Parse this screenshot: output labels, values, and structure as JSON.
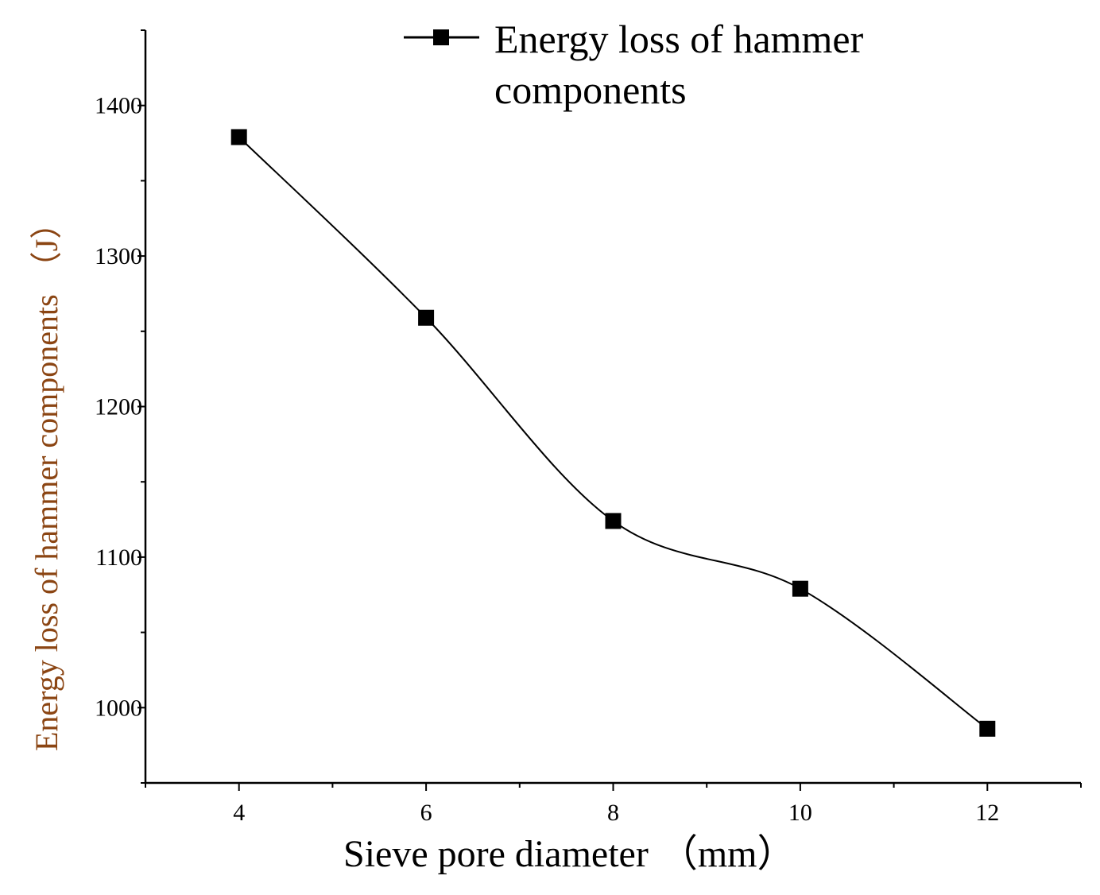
{
  "chart_data": {
    "type": "line",
    "title": "",
    "xlabel": "Sieve pore diameter",
    "xlabel_unit": "（mm）",
    "ylabel": "Energy loss of hammer components",
    "ylabel_unit": "（J）",
    "xlim": [
      3,
      13
    ],
    "ylim": [
      950,
      1450
    ],
    "x_ticks": [
      4,
      6,
      8,
      10,
      12
    ],
    "x_tick_labels": [
      "4",
      "6",
      "8",
      "10",
      "12"
    ],
    "y_ticks": [
      1000,
      1100,
      1200,
      1300,
      1400
    ],
    "y_tick_labels": [
      "1000",
      "1100",
      "1200",
      "1300",
      "1400"
    ],
    "grid": false,
    "legend_position": "top",
    "legend_line1": "Energy loss of hammer",
    "legend_line2": "components",
    "series": [
      {
        "name": "Energy loss of hammer components",
        "marker": "square",
        "color": "#000000",
        "x": [
          4,
          6,
          8,
          10,
          12
        ],
        "values": [
          1379,
          1259,
          1124,
          1079,
          986
        ]
      }
    ],
    "colors": {
      "axis": "#000000",
      "ylabel": "#8B4513",
      "line": "#000000"
    }
  }
}
